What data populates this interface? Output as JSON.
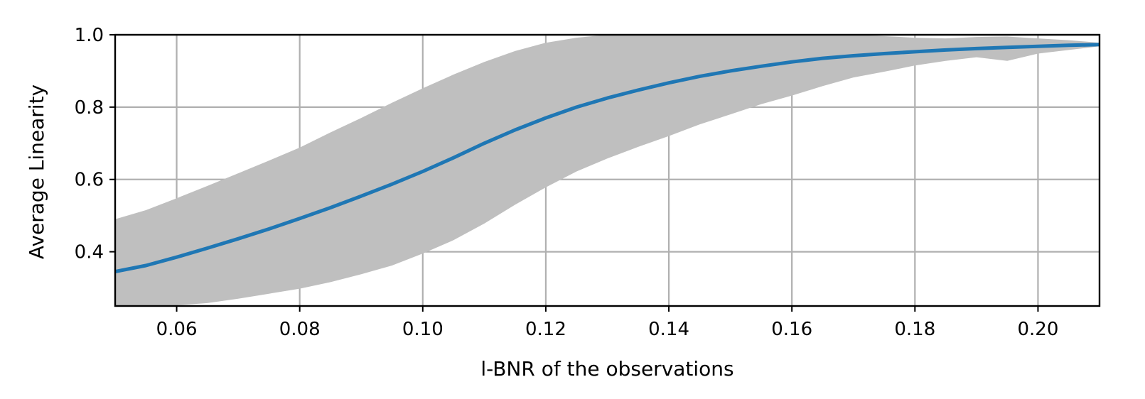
{
  "chart_data": {
    "type": "line",
    "title": "",
    "xlabel": "l-BNR of the observations",
    "ylabel": "Average Linearity",
    "xlim": [
      0.05,
      0.21
    ],
    "ylim": [
      0.25,
      1.0
    ],
    "grid": true,
    "xticks": [
      0.06,
      0.08,
      0.1,
      0.12,
      0.14,
      0.16,
      0.18,
      0.2
    ],
    "xtick_labels": [
      "0.06",
      "0.08",
      "0.10",
      "0.12",
      "0.14",
      "0.16",
      "0.18",
      "0.20"
    ],
    "yticks": [
      0.4,
      0.6,
      0.8,
      1.0
    ],
    "ytick_labels": [
      "0.4",
      "0.6",
      "0.8",
      "1.0"
    ],
    "colors": {
      "line": "#1f77b4",
      "band": "#bfbfbf",
      "grid": "#b0b0b0"
    },
    "series": [
      {
        "x": [
          0.05,
          0.055,
          0.06,
          0.065,
          0.07,
          0.075,
          0.08,
          0.085,
          0.09,
          0.095,
          0.1,
          0.105,
          0.11,
          0.115,
          0.12,
          0.125,
          0.13,
          0.135,
          0.14,
          0.145,
          0.15,
          0.155,
          0.16,
          0.165,
          0.17,
          0.175,
          0.18,
          0.185,
          0.19,
          0.195,
          0.2,
          0.205,
          0.21
        ],
        "y": [
          0.345,
          0.362,
          0.385,
          0.41,
          0.436,
          0.463,
          0.492,
          0.522,
          0.554,
          0.587,
          0.622,
          0.66,
          0.7,
          0.737,
          0.77,
          0.8,
          0.825,
          0.847,
          0.867,
          0.885,
          0.9,
          0.913,
          0.925,
          0.935,
          0.942,
          0.948,
          0.953,
          0.958,
          0.962,
          0.965,
          0.968,
          0.971,
          0.973
        ],
        "upper": [
          0.49,
          0.515,
          0.548,
          0.582,
          0.617,
          0.652,
          0.688,
          0.73,
          0.77,
          0.812,
          0.852,
          0.89,
          0.925,
          0.955,
          0.978,
          0.992,
          1.0,
          1.0,
          1.0,
          1.0,
          1.0,
          1.0,
          1.0,
          1.0,
          1.0,
          0.996,
          0.992,
          0.99,
          0.994,
          0.995,
          0.99,
          0.985,
          0.978
        ],
        "lower": [
          0.245,
          0.25,
          0.252,
          0.258,
          0.27,
          0.284,
          0.298,
          0.316,
          0.338,
          0.362,
          0.395,
          0.432,
          0.478,
          0.53,
          0.578,
          0.622,
          0.658,
          0.69,
          0.72,
          0.752,
          0.78,
          0.808,
          0.832,
          0.858,
          0.882,
          0.898,
          0.915,
          0.928,
          0.938,
          0.928,
          0.948,
          0.958,
          0.968
        ]
      }
    ]
  }
}
